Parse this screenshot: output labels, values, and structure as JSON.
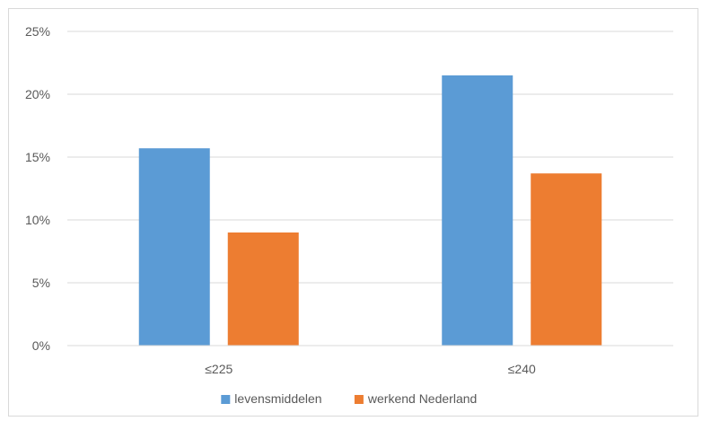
{
  "chart_data": {
    "type": "bar",
    "categories": [
      "≤225",
      "≤240"
    ],
    "series": [
      {
        "name": "levensmiddelen",
        "values": [
          15.7,
          21.5
        ],
        "color": "#5b9bd5"
      },
      {
        "name": "werkend Nederland",
        "values": [
          9.0,
          13.7
        ],
        "color": "#ed7d31"
      }
    ],
    "ylim": [
      0,
      25
    ],
    "yticks": [
      0,
      5,
      10,
      15,
      20,
      25
    ],
    "ytick_labels": [
      "0%",
      "5%",
      "10%",
      "15%",
      "20%",
      "25%"
    ],
    "grid": true,
    "legend_position": "bottom"
  }
}
